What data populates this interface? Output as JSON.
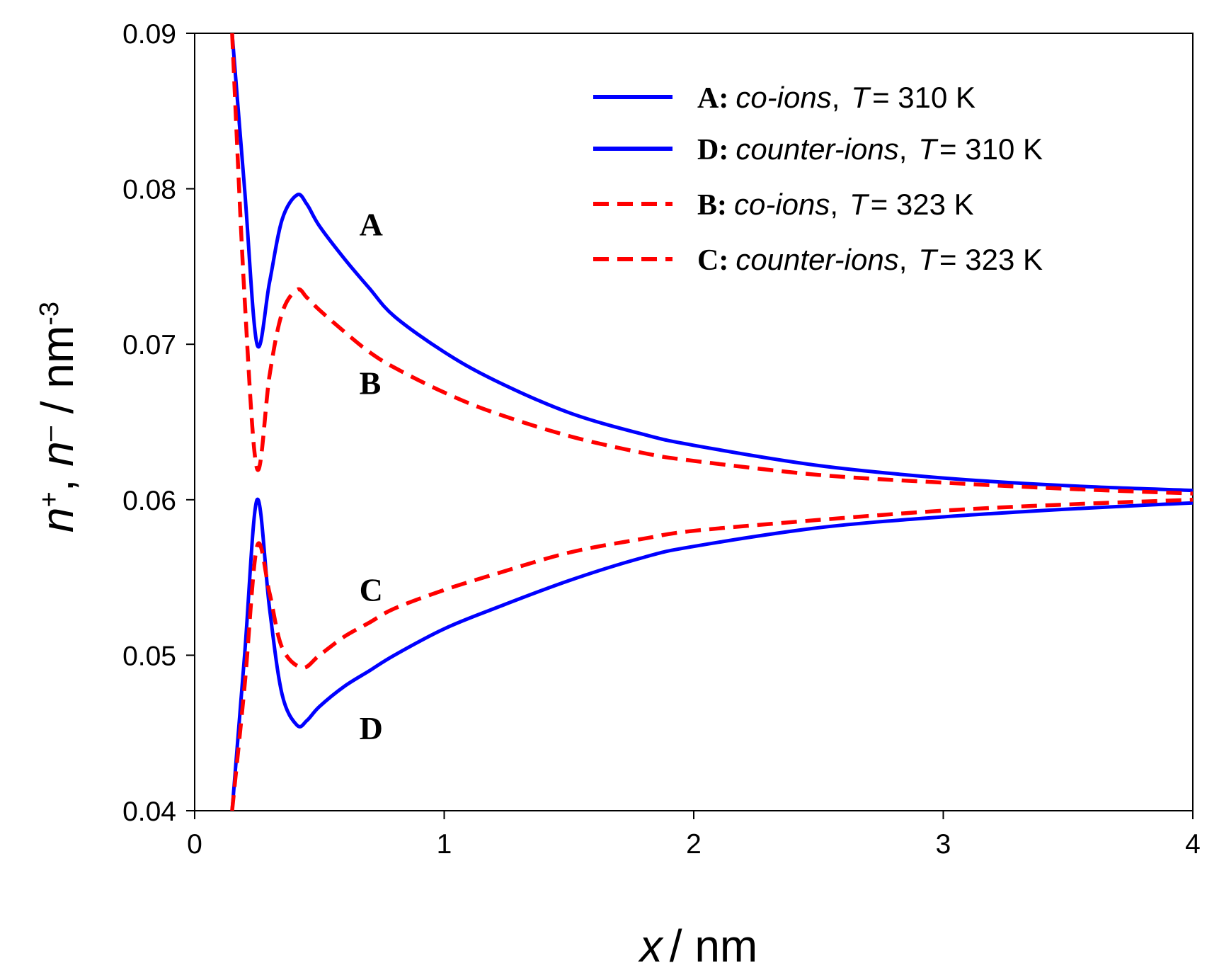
{
  "chart_data": {
    "type": "line",
    "xlabel": {
      "var": "x",
      "unit": "/ nm"
    },
    "ylabel": {
      "var1": "n",
      "sup1": "+",
      "sep": ", ",
      "var2": "n",
      "sup2": "–",
      "unit": " / nm",
      "exp": "-3"
    },
    "xlim": [
      0,
      4
    ],
    "ylim": [
      0.04,
      0.09
    ],
    "xticks": [
      "0",
      "1",
      "2",
      "3",
      "4"
    ],
    "yticks": [
      "0.04",
      "0.05",
      "0.06",
      "0.07",
      "0.08",
      "0.09"
    ],
    "grid": false,
    "legend_position": "top-right",
    "series": [
      {
        "key": "A",
        "style": "solid",
        "color": "#0000ff",
        "legend": {
          "letter": "A:",
          "kind": "co-ions",
          "sep": ",",
          "tvar": "T",
          "tval": "= 310 K"
        },
        "x": [
          0.15,
          0.2,
          0.25,
          0.3,
          0.35,
          0.41,
          0.45,
          0.5,
          0.6,
          0.7,
          0.8,
          1.0,
          1.2,
          1.5,
          1.8,
          2.0,
          2.5,
          3.0,
          3.5,
          4.0
        ],
        "y": [
          0.09,
          0.08,
          0.07,
          0.074,
          0.078,
          0.0796,
          0.079,
          0.0776,
          0.0755,
          0.0736,
          0.0718,
          0.0695,
          0.0677,
          0.0656,
          0.0642,
          0.0635,
          0.0622,
          0.0614,
          0.0609,
          0.0606
        ]
      },
      {
        "key": "D",
        "style": "solid",
        "color": "#0000ff",
        "legend": {
          "letter": "D:",
          "kind": "counter-ions",
          "sep": ",",
          "tvar": "T",
          "tval": "= 310 K"
        },
        "x": [
          0.15,
          0.2,
          0.25,
          0.3,
          0.35,
          0.41,
          0.45,
          0.5,
          0.6,
          0.7,
          0.8,
          1.0,
          1.2,
          1.5,
          1.8,
          2.0,
          2.5,
          3.0,
          3.5,
          4.0
        ],
        "y": [
          0.04,
          0.05,
          0.06,
          0.053,
          0.0475,
          0.0455,
          0.0458,
          0.0467,
          0.048,
          0.049,
          0.05,
          0.0517,
          0.053,
          0.0548,
          0.0563,
          0.057,
          0.0582,
          0.0589,
          0.0594,
          0.0598
        ]
      },
      {
        "key": "B",
        "style": "dashed",
        "color": "#ff0000",
        "legend": {
          "letter": "B:",
          "kind": "co-ions",
          "sep": ",",
          "tvar": "T",
          "tval": "= 323 K"
        },
        "x": [
          0.15,
          0.2,
          0.25,
          0.3,
          0.35,
          0.41,
          0.45,
          0.5,
          0.6,
          0.7,
          0.8,
          1.0,
          1.2,
          1.5,
          1.8,
          2.0,
          2.5,
          3.0,
          3.5,
          4.0
        ],
        "y": [
          0.09,
          0.073,
          0.062,
          0.068,
          0.072,
          0.0735,
          0.073,
          0.0722,
          0.0708,
          0.0695,
          0.0685,
          0.0669,
          0.0656,
          0.0641,
          0.063,
          0.0625,
          0.0616,
          0.0611,
          0.0607,
          0.0604
        ]
      },
      {
        "key": "C",
        "style": "dashed",
        "color": "#ff0000",
        "legend": {
          "letter": "C:",
          "kind": "counter-ions",
          "sep": ",",
          "tvar": "T",
          "tval": "= 323 K"
        },
        "x": [
          0.15,
          0.2,
          0.25,
          0.3,
          0.35,
          0.43,
          0.5,
          0.6,
          0.7,
          0.8,
          1.0,
          1.2,
          1.5,
          1.8,
          2.0,
          2.5,
          3.0,
          3.5,
          4.0
        ],
        "y": [
          0.04,
          0.048,
          0.057,
          0.054,
          0.0505,
          0.0492,
          0.05,
          0.0512,
          0.0521,
          0.053,
          0.0542,
          0.0552,
          0.0566,
          0.0575,
          0.058,
          0.0587,
          0.0593,
          0.0597,
          0.06
        ]
      }
    ],
    "curve_labels": [
      {
        "text": "A",
        "x": 0.66,
        "y": 0.077
      },
      {
        "text": "B",
        "x": 0.66,
        "y": 0.0668
      },
      {
        "text": "C",
        "x": 0.66,
        "y": 0.0535
      },
      {
        "text": "D",
        "x": 0.66,
        "y": 0.0446
      }
    ]
  }
}
